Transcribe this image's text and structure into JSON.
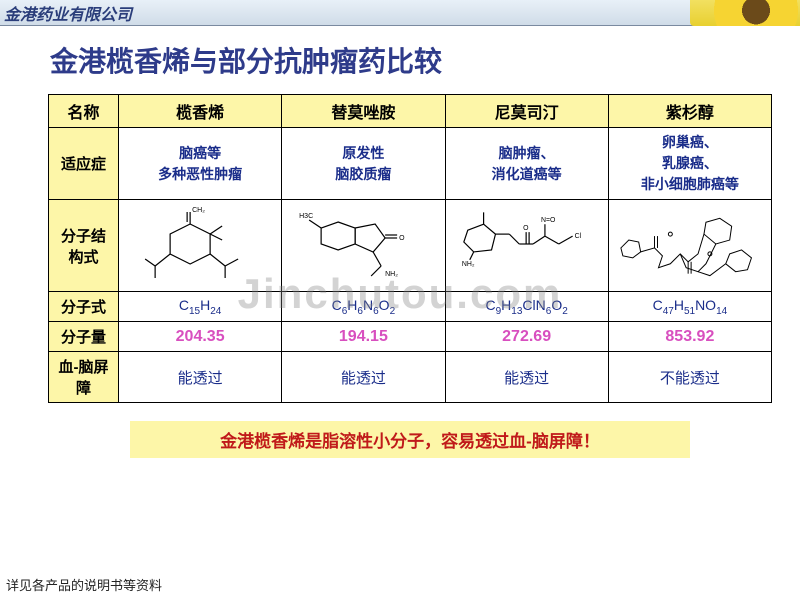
{
  "topbar": {
    "company": "金港药业有限公司"
  },
  "title": "金港榄香烯与部分抗肿瘤药比较",
  "watermark": "Jinchutou.com",
  "table": {
    "header_row_label": "名称",
    "columns": [
      "榄香烯",
      "替莫唑胺",
      "尼莫司汀",
      "紫杉醇"
    ],
    "rows": {
      "indication": {
        "label": "适应症",
        "cells": [
          "脑癌等\n多种恶性肿瘤",
          "原发性\n脑胶质瘤",
          "脑肿瘤、\n消化道癌等",
          "卵巢癌、\n乳腺癌、\n非小细胞肺癌等"
        ]
      },
      "structure": {
        "label": "分子结\n构式"
      },
      "formula": {
        "label": "分子式",
        "cells_html": [
          "C<sub>15</sub>H<sub>24</sub>",
          "C<sub>6</sub>H<sub>6</sub>N<sub>6</sub>O<sub>2</sub>",
          "C<sub>9</sub>H<sub>13</sub>ClN<sub>6</sub>O<sub>2</sub>",
          "C<sub>47</sub>H<sub>51</sub>NO<sub>14</sub>"
        ]
      },
      "mw": {
        "label": "分子量",
        "cells": [
          "204.35",
          "194.15",
          "272.69",
          "853.92"
        ]
      },
      "bbb": {
        "label": "血-脑屏\n障",
        "cells": [
          "能透过",
          "能透过",
          "能透过",
          "不能透过"
        ]
      }
    },
    "colors": {
      "header_bg": "#fdf6a8",
      "border": "#000000",
      "text_blue": "#1a2d8a",
      "text_pink": "#d84fbf",
      "note_bg": "#fdf6a8",
      "note_text": "#c01a1a"
    }
  },
  "note": "金港榄香烯是脂溶性小分子，容易透过血-脑屏障！",
  "footnote": "详见各产品的说明书等资料"
}
